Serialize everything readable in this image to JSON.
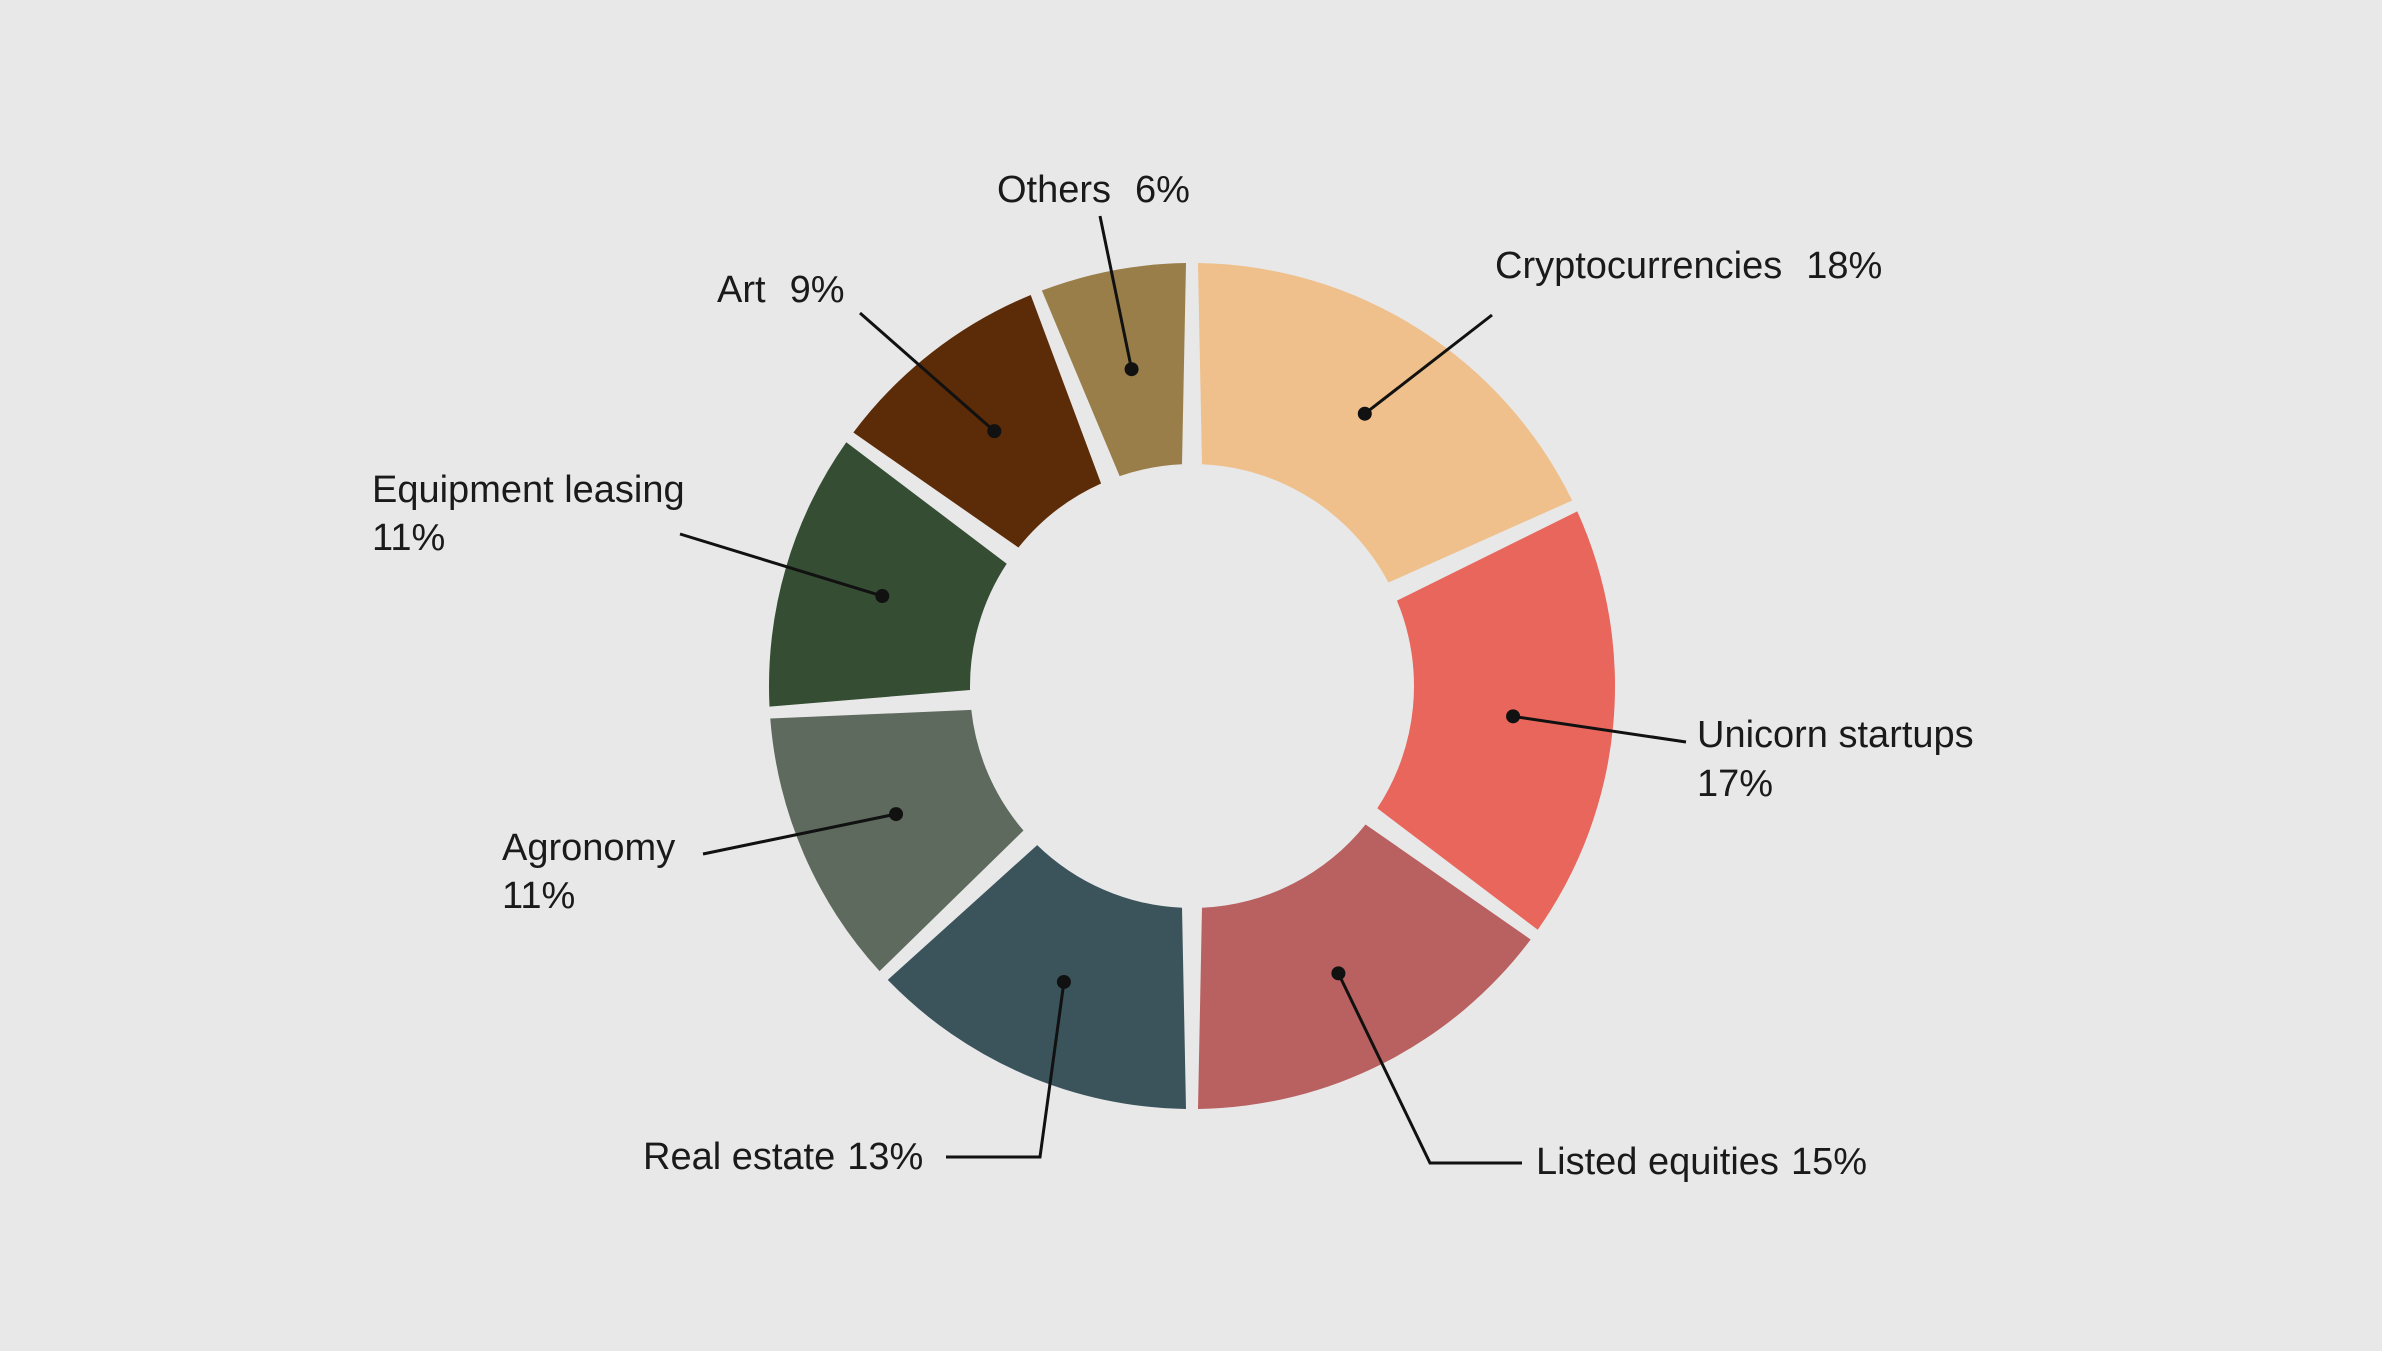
{
  "chart_data": {
    "type": "pie",
    "variant": "donut",
    "title": "",
    "slices": [
      {
        "label": "Cryptocurrencies",
        "value": 18,
        "value_label": "18%",
        "color": "#efc08b"
      },
      {
        "label": "Unicorn startups",
        "value": 17,
        "value_label": "17%",
        "color": "#e8665b"
      },
      {
        "label": "Listed equities",
        "value": 15,
        "value_label": "15%",
        "color": "#b96060"
      },
      {
        "label": "Real estate",
        "value": 13,
        "value_label": "13%",
        "color": "#3b535b"
      },
      {
        "label": "Agronomy",
        "value": 11,
        "value_label": "11%",
        "color": "#5e6a5e"
      },
      {
        "label": "Equipment leasing",
        "value": 11,
        "value_label": "11%",
        "color": "#354d33"
      },
      {
        "label": "Art",
        "value": 9,
        "value_label": "9%",
        "color": "#5c2b08"
      },
      {
        "label": "Others",
        "value": 6,
        "value_label": "6%",
        "color": "#997e4a"
      }
    ],
    "legend": "none",
    "labels": "outside with leader lines"
  }
}
